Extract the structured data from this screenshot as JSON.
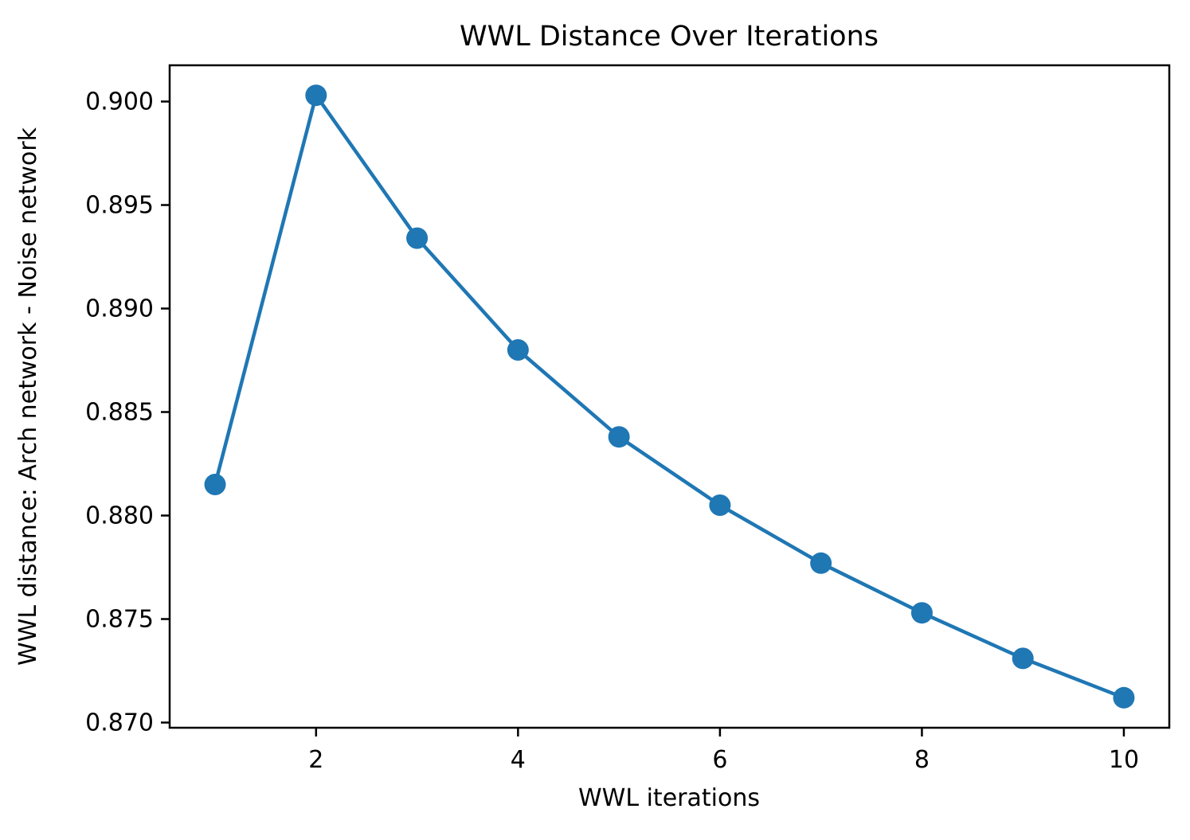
{
  "chart_data": {
    "type": "line",
    "title": "WWL Distance Over Iterations",
    "xlabel": "WWL iterations",
    "ylabel": "WWL distance: Arch network - Noise network",
    "x": [
      1,
      2,
      3,
      4,
      5,
      6,
      7,
      8,
      9,
      10
    ],
    "y": [
      0.8815,
      0.9003,
      0.8934,
      0.888,
      0.8838,
      0.8805,
      0.8777,
      0.8753,
      0.8731,
      0.8712
    ],
    "xticks": [
      2,
      4,
      6,
      8,
      10
    ],
    "yticks": [
      0.87,
      0.875,
      0.88,
      0.885,
      0.89,
      0.895,
      0.9
    ],
    "ytick_decimals": 3,
    "xlim": [
      0.55,
      10.45
    ],
    "ylim": [
      0.86975,
      0.90175
    ],
    "line_color": "#1f77b4",
    "marker": "circle",
    "grid": false,
    "legend_position": "none"
  }
}
